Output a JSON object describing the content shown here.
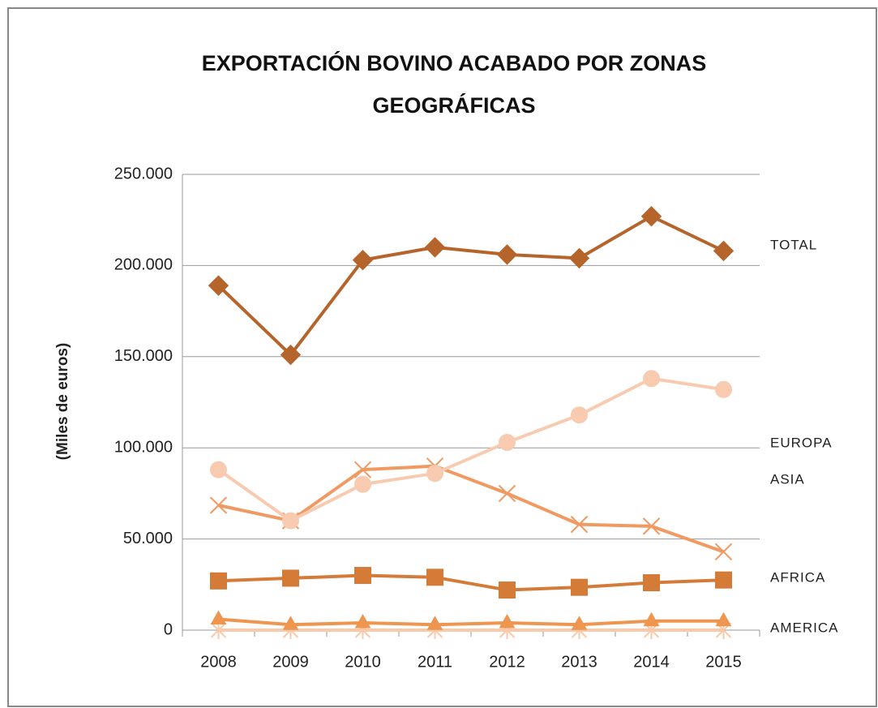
{
  "chart_data": {
    "type": "line",
    "title": "EXPORTACIÓN BOVINO ACABADO POR ZONAS GEOGRÁFICAS",
    "y_label": "(Miles de euros)",
    "categories": [
      "2008",
      "2009",
      "2010",
      "2011",
      "2012",
      "2013",
      "2014",
      "2015"
    ],
    "series": [
      {
        "name": "TOTAL",
        "color": "#b5652b",
        "marker": "diamond",
        "values": [
          189000,
          151000,
          203000,
          210000,
          206000,
          204000,
          227000,
          208000
        ]
      },
      {
        "name": "EUROPA",
        "color": "#f8cbb0",
        "marker": "circle",
        "values": [
          88000,
          60000,
          80000,
          86000,
          103000,
          118000,
          138000,
          132000
        ]
      },
      {
        "name": "ASIA",
        "color": "#f09a62",
        "marker": "x",
        "values": [
          68500,
          60000,
          88000,
          90000,
          75000,
          58000,
          57000,
          43000
        ]
      },
      {
        "name": "AFRICA",
        "color": "#d47b38",
        "marker": "square",
        "values": [
          27000,
          28500,
          30000,
          29000,
          22000,
          23500,
          26000,
          27500
        ]
      },
      {
        "name": "AMERICA",
        "color": "#ee9550",
        "marker": "triangle",
        "values": [
          6000,
          3000,
          4000,
          3000,
          4000,
          3000,
          5000,
          5000
        ]
      },
      {
        "name": null,
        "color": "#f9c9aa",
        "marker": "star",
        "values": [
          0,
          0,
          0,
          0,
          0,
          0,
          0,
          0
        ]
      }
    ],
    "ylim": [
      0,
      250000
    ],
    "yticks": [
      0,
      {
        "value": 50000,
        "label": "50.000"
      },
      {
        "value": 100000,
        "label": "100.000"
      },
      {
        "value": 150000,
        "label": "150.000"
      },
      {
        "value": 200000,
        "label": "200.000"
      },
      {
        "value": 250000,
        "label": "250.000"
      }
    ],
    "grid": true
  }
}
